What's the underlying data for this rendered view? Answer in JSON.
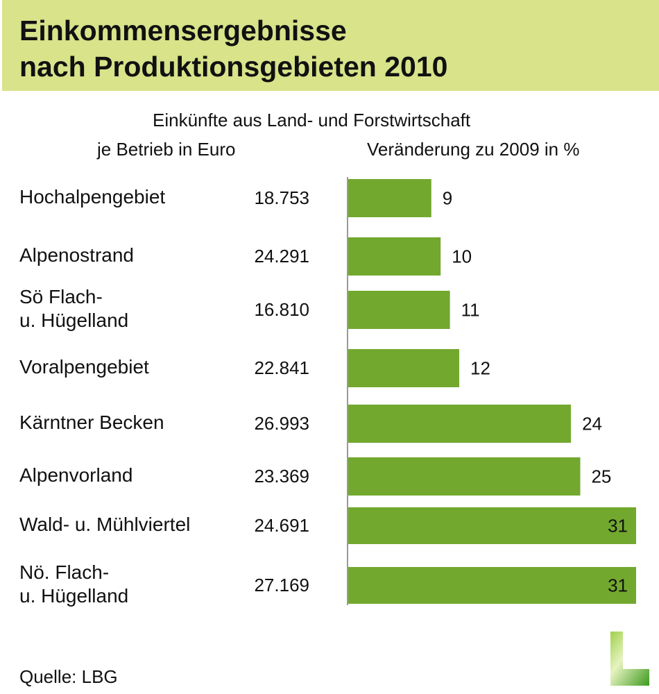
{
  "title_line1": "Einkommensergebnisse",
  "title_line2": "nach Produktionsgebieten 2010",
  "subtitle": "Einkünfte aus Land- und Forstwirtschaft",
  "col1_header": "je Betrieb in Euro",
  "col2_header": "Veränderung zu 2009 in %",
  "source": "Quelle: LBG",
  "colors": {
    "band": "#d8e38a",
    "bar": "#72a82e"
  },
  "chart_data": {
    "type": "bar",
    "orientation": "horizontal",
    "title": "Einkünfte aus Land- und Forstwirtschaft",
    "categories": [
      [
        "Hochalpengebiet"
      ],
      [
        "Alpenostrand"
      ],
      [
        "Sö Flach-",
        "u. Hügelland"
      ],
      [
        "Voralpengebiet"
      ],
      [
        "Kärntner Becken"
      ],
      [
        "Alpenvorland"
      ],
      [
        "Wald- u. Mühlviertel"
      ],
      [
        "Nö. Flach-",
        "u. Hügelland"
      ]
    ],
    "income_euro": [
      "18.753",
      "24.291",
      "16.810",
      "22.841",
      "26.993",
      "23.369",
      "24.691",
      "27.169"
    ],
    "values": [
      9,
      10,
      11,
      12,
      24,
      25,
      31,
      31
    ],
    "xlabel": "Veränderung zu 2009 in %",
    "xlim": [
      0,
      31
    ]
  }
}
